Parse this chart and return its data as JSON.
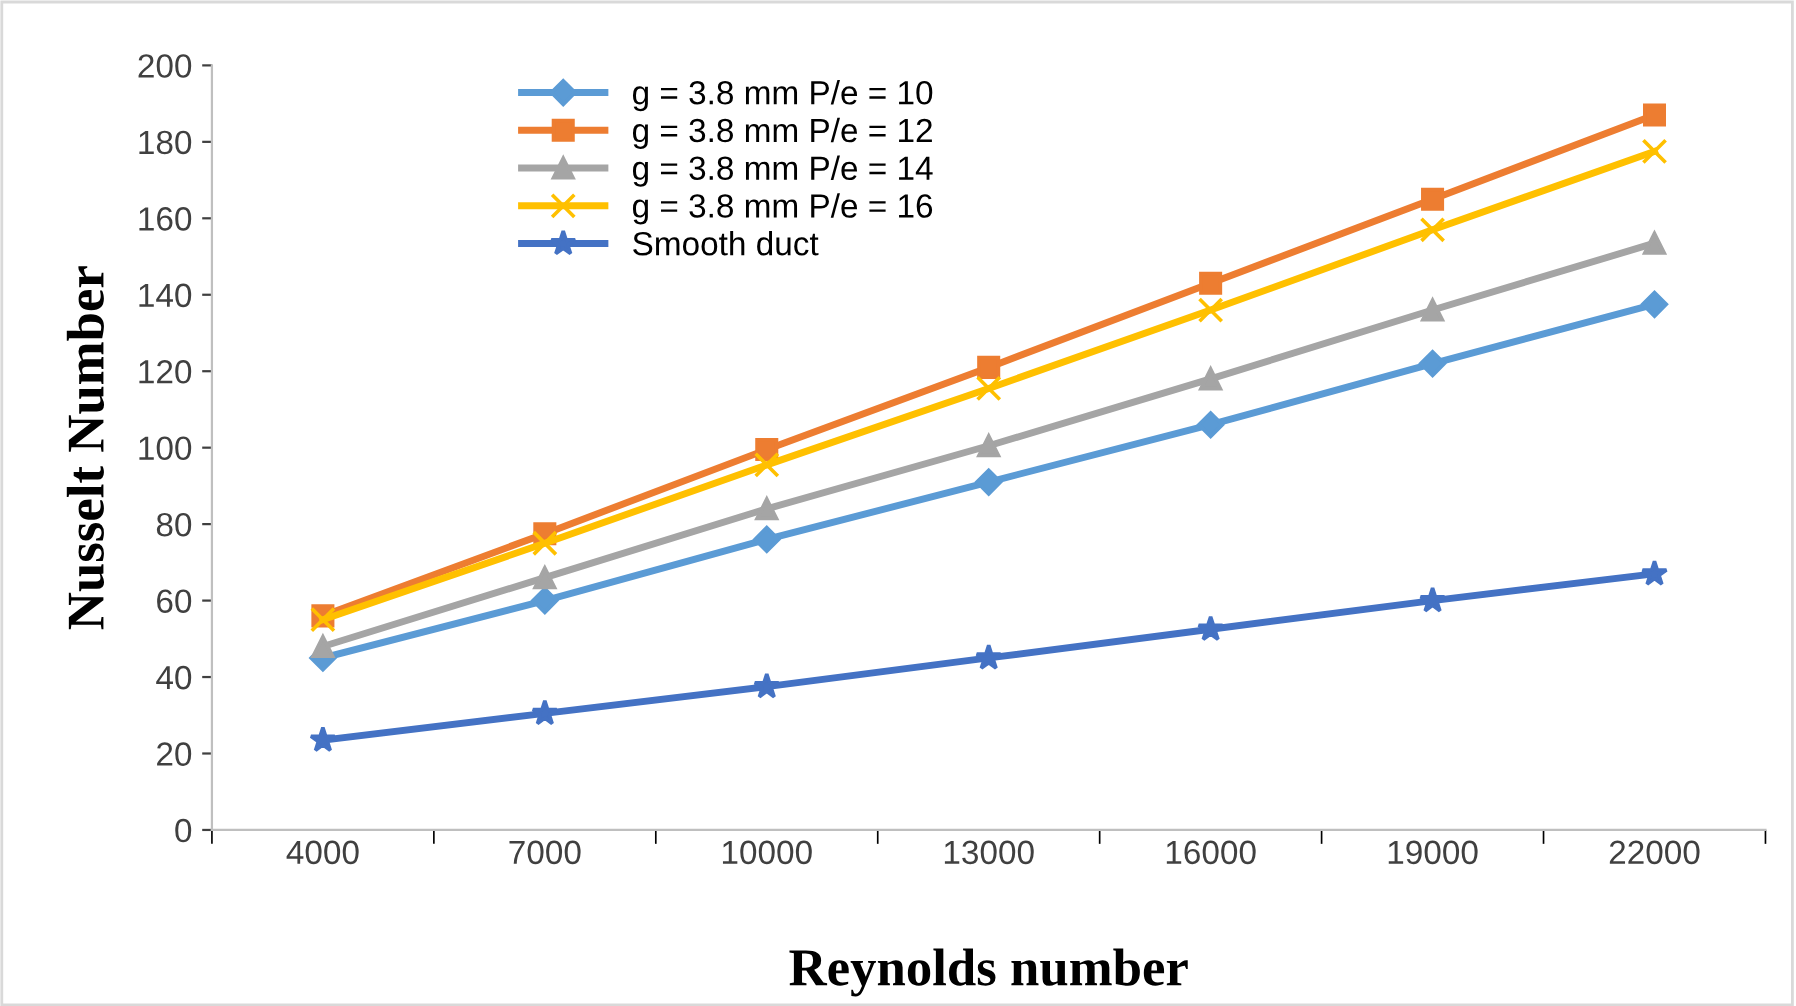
{
  "chart_data": {
    "type": "line",
    "xlabel": "Reynolds number",
    "ylabel": "Nusselt Number",
    "categories": [
      "4000",
      "7000",
      "10000",
      "13000",
      "16000",
      "19000",
      "22000"
    ],
    "series": [
      {
        "name": "g = 3.8 mm P/e = 10",
        "color": "#5b9bd5",
        "marker": "diamond",
        "values": [
          45,
          60,
          76,
          91,
          106,
          122,
          137.5
        ]
      },
      {
        "name": "g = 3.8 mm P/e = 12",
        "color": "#ed7d31",
        "marker": "square",
        "values": [
          56,
          77.5,
          99.5,
          121,
          143,
          165,
          187
        ]
      },
      {
        "name": "g = 3.8 mm P/e = 14",
        "color": "#a5a5a5",
        "marker": "triangle",
        "values": [
          48,
          66,
          84,
          100.5,
          118,
          136,
          153.5
        ]
      },
      {
        "name": "g = 3.8 mm P/e = 16",
        "color": "#ffc000",
        "marker": "cross",
        "values": [
          55,
          75,
          95.5,
          115.5,
          136,
          157,
          177.5
        ]
      },
      {
        "name": "Smooth duct",
        "color": "#4472c4",
        "marker": "star",
        "values": [
          23.5,
          30.5,
          37.5,
          45,
          52.5,
          60,
          67
        ]
      }
    ],
    "ylim": [
      0,
      200
    ],
    "yticks": [
      0,
      20,
      40,
      60,
      80,
      100,
      120,
      140,
      160,
      180,
      200
    ],
    "grid": false,
    "legend": "top left",
    "line_style": "solid"
  }
}
